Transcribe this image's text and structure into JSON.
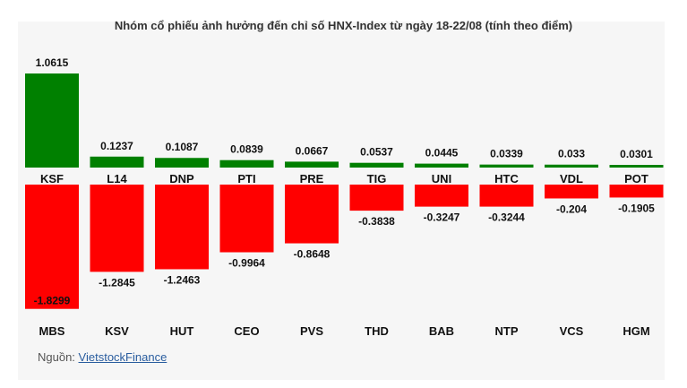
{
  "title": "Nhóm cổ phiếu ảnh hưởng đến chỉ số HNX-Index từ ngày 18-22/08 (tính theo điểm)",
  "source_label": "Nguồn:",
  "source_link": "VietstockFinance",
  "colors": {
    "positive": "#008000",
    "negative": "#ff0000"
  },
  "chart_data": {
    "type": "bar",
    "title": "Nhóm cổ phiếu ảnh hưởng đến chỉ số HNX-Index từ ngày 18-22/08 (tính theo điểm)",
    "series": [
      {
        "values": [
          1.0615,
          0.1237,
          0.1087,
          0.0839,
          0.0667,
          0.0537,
          0.0445,
          0.0339,
          0.033,
          0.0301
        ],
        "value_labels": [
          "1.0615",
          "0.1237",
          "0.1087",
          "0.0839",
          "0.0667",
          "0.0537",
          "0.0445",
          "0.0339",
          "0.033",
          "0.0301"
        ],
        "categories": [
          "KSF",
          "L14",
          "DNP",
          "PTI",
          "PRE",
          "TIG",
          "UNI",
          "HTC",
          "VDL",
          "POT"
        ]
      },
      {
        "values": [
          -1.8299,
          -1.2845,
          -1.2463,
          -0.9964,
          -0.8648,
          -0.3838,
          -0.3247,
          -0.3244,
          -0.204,
          -0.1905
        ],
        "value_labels": [
          "-1.8299",
          "-1.2845",
          "-1.2463",
          "-0.9964",
          "-0.8648",
          "-0.3838",
          "-0.3247",
          "-0.3244",
          "-0.204",
          "-0.1905"
        ],
        "categories": [
          "MBS",
          "KSV",
          "HUT",
          "CEO",
          "PVS",
          "THD",
          "BAB",
          "NTP",
          "VCS",
          "HGM"
        ]
      }
    ],
    "grid": false,
    "legend": "none"
  }
}
